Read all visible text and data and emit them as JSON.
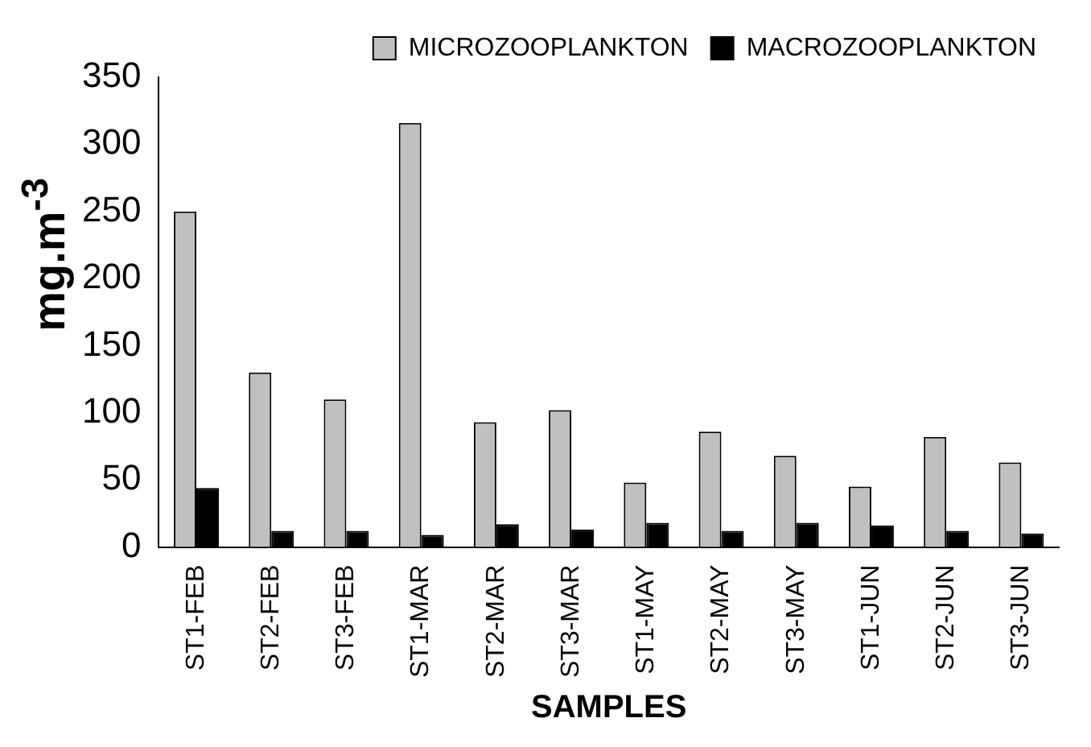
{
  "chart_data": {
    "type": "bar",
    "xlabel": "SAMPLES",
    "ylabel": "mg.m$^{-3}$",
    "categories": [
      "ST1-FEB",
      "ST2-FEB",
      "ST3-FEB",
      "ST1-MAR",
      "ST2-MAR",
      "ST3-MAR",
      "ST1-MAY",
      "ST2-MAY",
      "ST3-MAY",
      "ST1-JUN",
      "ST2-JUN",
      "ST3-JUN"
    ],
    "series": [
      {
        "name": "MICROZOOPLANKTON",
        "color": "#c0c0c0",
        "values": [
          250,
          130,
          110,
          316,
          93,
          102,
          48,
          86,
          68,
          45,
          82,
          63
        ]
      },
      {
        "name": "MACROZOOPLANKTON",
        "color": "#000000",
        "values": [
          44,
          12,
          12,
          9,
          17,
          13,
          18,
          12,
          18,
          16,
          12,
          10
        ]
      }
    ],
    "ylim": [
      0,
      350
    ],
    "yticks": [
      0,
      50,
      100,
      150,
      200,
      250,
      300,
      350
    ],
    "grid": false,
    "legend": "top right"
  }
}
